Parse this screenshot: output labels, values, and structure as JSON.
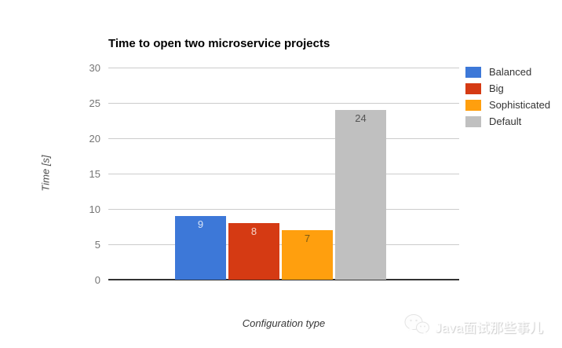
{
  "chart_data": {
    "type": "bar",
    "title": "Time to open two microservice projects",
    "xlabel": "Configuration type",
    "ylabel": "Time [s]",
    "ylim": [
      0,
      30
    ],
    "yticks": [
      0,
      5,
      10,
      15,
      20,
      25,
      30
    ],
    "grid": true,
    "legend_position": "right",
    "categories": [
      "Balanced",
      "Big",
      "Sophisticated",
      "Default"
    ],
    "values": [
      9,
      8,
      7,
      24
    ],
    "series": [
      {
        "name": "Balanced",
        "value": 9,
        "color": "#3D78D8",
        "label_color": "#d9e4f7"
      },
      {
        "name": "Big",
        "value": 8,
        "color": "#D53A13",
        "label_color": "#f6d3c9"
      },
      {
        "name": "Sophisticated",
        "value": 7,
        "color": "#FF9F0E",
        "label_color": "#7a5a14"
      },
      {
        "name": "Default",
        "value": 24,
        "color": "#C0C0C0",
        "label_color": "#545454"
      }
    ]
  },
  "watermark": {
    "icon": "wechat-icon",
    "text": "Java面试那些事儿"
  },
  "colors": {
    "gridline": "#cccccc",
    "axis_line": "#333333",
    "tick_label": "#757575",
    "title": "#000000"
  }
}
